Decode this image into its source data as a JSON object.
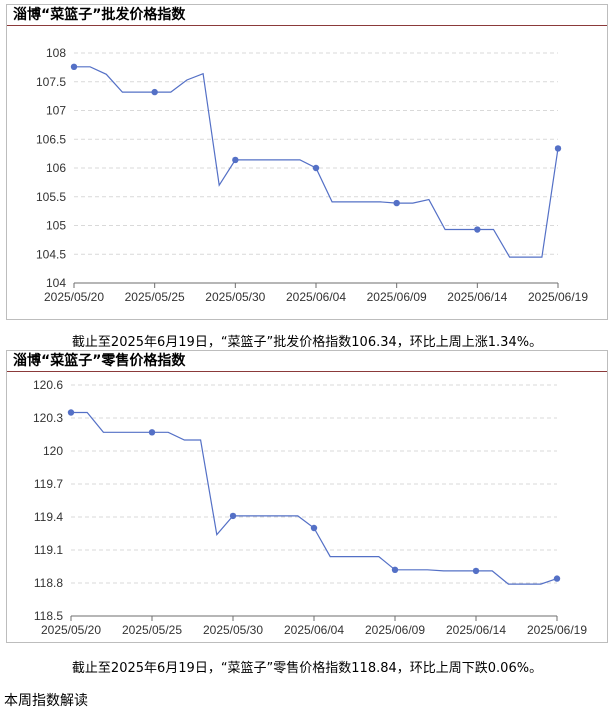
{
  "chart_data": [
    {
      "type": "line",
      "title": "淄博“菜篮子”批发价格指数",
      "x": [
        "2025/05/20",
        "2025/05/21",
        "2025/05/22",
        "2025/05/23",
        "2025/05/24",
        "2025/05/25",
        "2025/05/26",
        "2025/05/27",
        "2025/05/28",
        "2025/05/29",
        "2025/05/30",
        "2025/05/31",
        "2025/06/01",
        "2025/06/02",
        "2025/06/03",
        "2025/06/04",
        "2025/06/05",
        "2025/06/06",
        "2025/06/07",
        "2025/06/08",
        "2025/06/09",
        "2025/06/10",
        "2025/06/11",
        "2025/06/12",
        "2025/06/13",
        "2025/06/14",
        "2025/06/15",
        "2025/06/16",
        "2025/06/17",
        "2025/06/18",
        "2025/06/19"
      ],
      "y": [
        107.76,
        107.76,
        107.63,
        107.32,
        107.32,
        107.32,
        107.32,
        107.53,
        107.64,
        105.7,
        106.14,
        106.14,
        106.14,
        106.14,
        106.14,
        106.0,
        105.41,
        105.41,
        105.41,
        105.41,
        105.39,
        105.39,
        105.45,
        104.93,
        104.93,
        104.93,
        104.93,
        104.45,
        104.45,
        104.45,
        106.34
      ],
      "markers": [
        0,
        5,
        10,
        15,
        20,
        25,
        30
      ],
      "xticks": [
        "2025/05/20",
        "2025/05/25",
        "2025/05/30",
        "2025/06/04",
        "2025/06/09",
        "2025/06/14",
        "2025/06/19"
      ],
      "yticks": [
        "104",
        "104.5",
        "105",
        "105.5",
        "106",
        "106.5",
        "107",
        "107.5",
        "108"
      ],
      "ylim": [
        104,
        108
      ],
      "grid": true,
      "color": "#5470c6"
    },
    {
      "type": "line",
      "title": "淄博“菜篮子”零售价格指数",
      "x": [
        "2025/05/20",
        "2025/05/21",
        "2025/05/22",
        "2025/05/23",
        "2025/05/24",
        "2025/05/25",
        "2025/05/26",
        "2025/05/27",
        "2025/05/28",
        "2025/05/29",
        "2025/05/30",
        "2025/05/31",
        "2025/06/01",
        "2025/06/02",
        "2025/06/03",
        "2025/06/04",
        "2025/06/05",
        "2025/06/06",
        "2025/06/07",
        "2025/06/08",
        "2025/06/09",
        "2025/06/10",
        "2025/06/11",
        "2025/06/12",
        "2025/06/13",
        "2025/06/14",
        "2025/06/15",
        "2025/06/16",
        "2025/06/17",
        "2025/06/18",
        "2025/06/19"
      ],
      "y": [
        120.35,
        120.35,
        120.17,
        120.17,
        120.17,
        120.17,
        120.17,
        120.1,
        120.1,
        119.24,
        119.41,
        119.41,
        119.41,
        119.41,
        119.41,
        119.3,
        119.04,
        119.04,
        119.04,
        119.04,
        118.92,
        118.92,
        118.92,
        118.91,
        118.91,
        118.91,
        118.91,
        118.79,
        118.79,
        118.79,
        118.84
      ],
      "markers": [
        0,
        5,
        10,
        15,
        20,
        25,
        30
      ],
      "xticks": [
        "2025/05/20",
        "2025/05/25",
        "2025/05/30",
        "2025/06/04",
        "2025/06/09",
        "2025/06/14",
        "2025/06/19"
      ],
      "yticks": [
        "118.5",
        "118.8",
        "119.1",
        "119.4",
        "119.7",
        "120",
        "120.3",
        "120.6"
      ],
      "ylim": [
        118.5,
        120.6
      ],
      "grid": true,
      "color": "#5470c6"
    }
  ],
  "captions": {
    "wholesale": "截止至2025年6月19日，“菜篮子”批发价格指数106.34，环比上周上涨1.34%。",
    "retail": "截止至2025年6月19日，“菜篮子”零售价格指数118.84，环比上周下跌0.06%。"
  },
  "footer": "本周指数解读"
}
